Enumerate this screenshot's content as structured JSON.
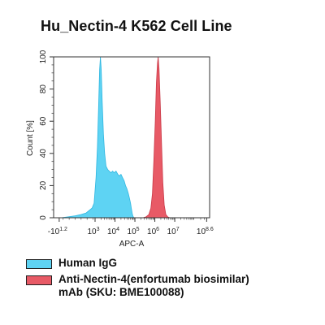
{
  "title": "Hu_Nectin-4 K562 Cell Line",
  "chart_data": {
    "type": "area",
    "title": "Hu_Nectin-4 K562 Cell Line",
    "xlabel": "APC-A",
    "ylabel": "Count [%]",
    "ylim": [
      0,
      100
    ],
    "y_ticks": [
      "0",
      "20",
      "40",
      "60",
      "80",
      "100"
    ],
    "x_ticks": [
      {
        "base": "-10",
        "exp": "1.2"
      },
      {
        "base": "10",
        "exp": "3"
      },
      {
        "base": "10",
        "exp": "4"
      },
      {
        "base": "10",
        "exp": "5"
      },
      {
        "base": "10",
        "exp": "6"
      },
      {
        "base": "10",
        "exp": "7"
      },
      {
        "base": "10",
        "exp": "8.6"
      }
    ],
    "x_scale": "biexponential (log10 of APC-A)",
    "series": [
      {
        "name": "Human IgG",
        "color": "#5ed3f3",
        "points": [
          [
            1.3,
            0
          ],
          [
            1.6,
            0.5
          ],
          [
            2.0,
            1.2
          ],
          [
            2.3,
            2
          ],
          [
            2.55,
            3
          ],
          [
            2.75,
            5
          ],
          [
            2.85,
            6
          ],
          [
            2.95,
            9
          ],
          [
            3.05,
            25
          ],
          [
            3.12,
            44
          ],
          [
            3.18,
            70
          ],
          [
            3.23,
            92
          ],
          [
            3.27,
            100
          ],
          [
            3.31,
            92
          ],
          [
            3.36,
            72
          ],
          [
            3.42,
            52
          ],
          [
            3.48,
            40
          ],
          [
            3.55,
            32
          ],
          [
            3.63,
            30
          ],
          [
            3.71,
            29
          ],
          [
            3.8,
            28
          ],
          [
            3.88,
            29
          ],
          [
            3.96,
            28
          ],
          [
            4.05,
            29
          ],
          [
            4.14,
            27
          ],
          [
            4.22,
            26
          ],
          [
            4.3,
            27
          ],
          [
            4.38,
            25
          ],
          [
            4.46,
            23
          ],
          [
            4.53,
            20
          ],
          [
            4.6,
            18
          ],
          [
            4.67,
            15
          ],
          [
            4.73,
            12
          ],
          [
            4.78,
            9
          ],
          [
            4.82,
            6
          ],
          [
            4.86,
            3
          ],
          [
            4.9,
            1
          ],
          [
            4.95,
            0
          ]
        ]
      },
      {
        "name": "Anti-Nectin-4(enfortumab biosimilar) mAb (SKU: BME100088)",
        "color": "#e85a66",
        "points": [
          [
            5.4,
            0
          ],
          [
            5.55,
            0.5
          ],
          [
            5.7,
            2
          ],
          [
            5.8,
            6
          ],
          [
            5.88,
            15
          ],
          [
            5.95,
            35
          ],
          [
            6.02,
            60
          ],
          [
            6.08,
            84
          ],
          [
            6.13,
            96
          ],
          [
            6.17,
            100
          ],
          [
            6.21,
            93
          ],
          [
            6.27,
            72
          ],
          [
            6.34,
            45
          ],
          [
            6.4,
            22
          ],
          [
            6.47,
            8
          ],
          [
            6.55,
            2
          ],
          [
            6.65,
            0.5
          ],
          [
            6.75,
            0
          ]
        ]
      }
    ]
  },
  "legend": [
    {
      "label": "Human IgG",
      "color": "#5ed3f3"
    },
    {
      "label": "Anti-Nectin-4(enfortumab biosimilar)",
      "label2": "mAb (SKU: BME100088)",
      "color": "#e85a66"
    }
  ]
}
